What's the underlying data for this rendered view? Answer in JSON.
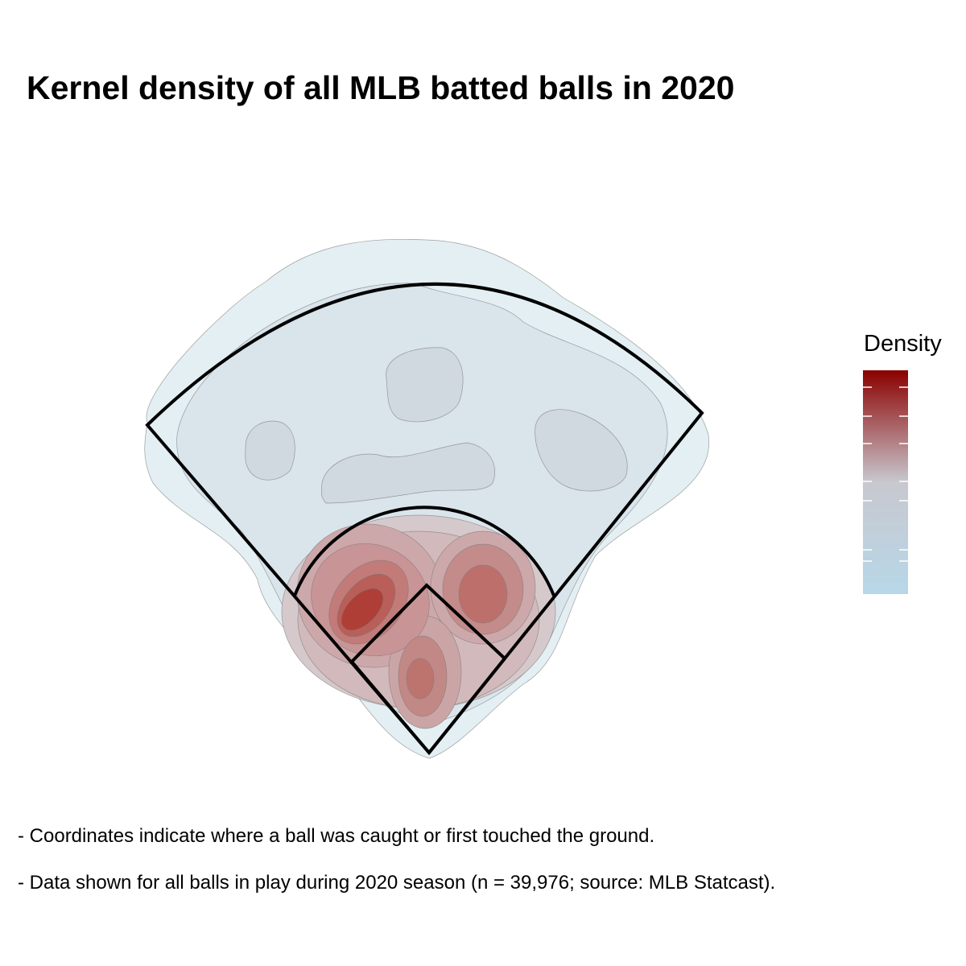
{
  "chart_data": {
    "type": "density",
    "title": "Kernel density of all MLB batted balls in 2020",
    "legend_title": "Density",
    "colors": [
      "#8b0000",
      "#c8c8cf",
      "#b7d7e8"
    ],
    "notes": [
      "- Coordinates indicate where a ball was caught or first touched the ground.",
      "- Data shown for all balls in play during 2020 season (n = 39,976; source: MLB Statcast)."
    ]
  }
}
